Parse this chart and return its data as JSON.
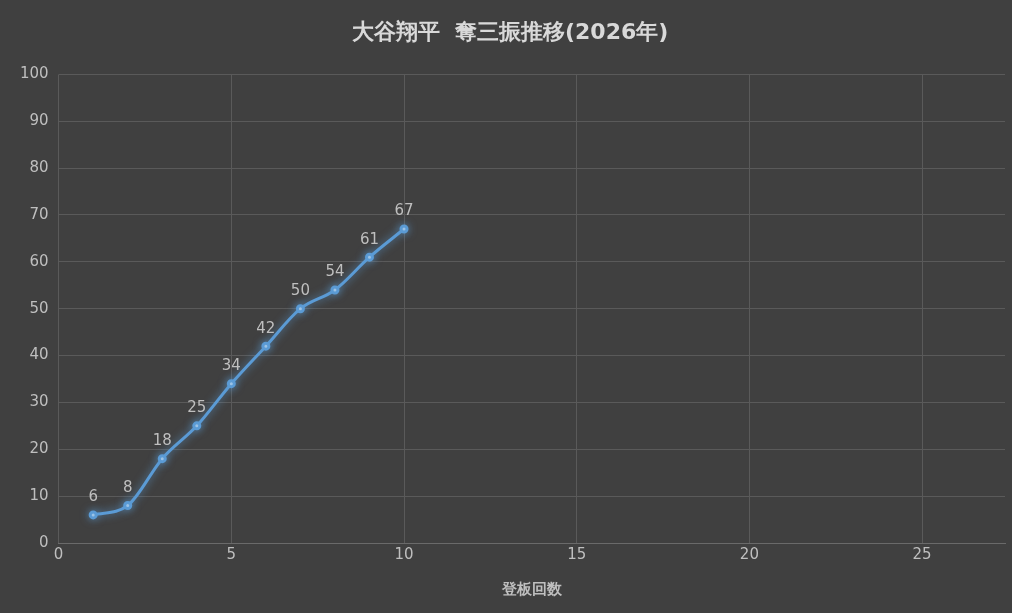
{
  "chart_data": {
    "type": "line",
    "title": "大谷翔平  奪三振推移(2026年)",
    "xlabel": "登板回数",
    "x": [
      1,
      2,
      3,
      4,
      5,
      6,
      7,
      8,
      9,
      10
    ],
    "series": [
      {
        "color": "#5b9bd5",
        "values": [
          6,
          8,
          18,
          25,
          34,
          42,
          50,
          54,
          61,
          67
        ]
      }
    ],
    "xlim": [
      0,
      27.4
    ],
    "xticks": [
      0,
      5,
      10,
      15,
      20,
      25
    ],
    "ylim": [
      0,
      100
    ],
    "yticks": [
      0,
      10,
      20,
      30,
      40,
      50,
      60,
      70,
      80,
      90,
      100
    ],
    "grid": true,
    "legend": false,
    "marker": "circle",
    "line_style": "solid",
    "data_labels": true
  }
}
